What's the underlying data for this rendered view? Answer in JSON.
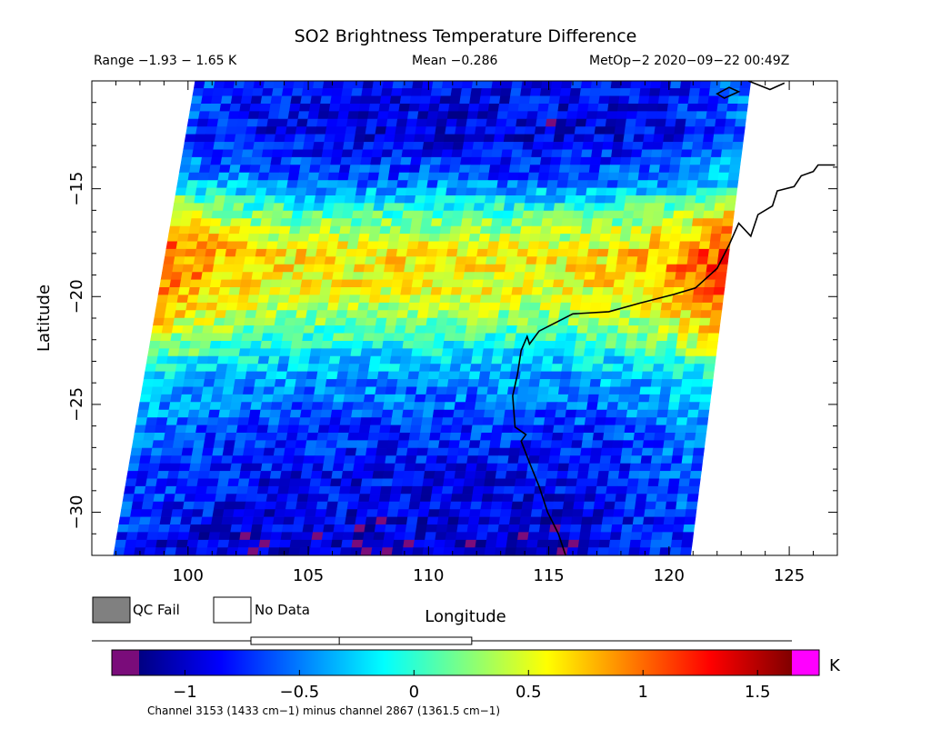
{
  "header": {
    "title": "SO2 Brightness Temperature Difference",
    "range_text": "Range −1.93 − 1.65 K",
    "mean_text": "Mean −0.286",
    "satellite_text": "MetOp−2 2020−09−22 00:49Z"
  },
  "chart_data": {
    "type": "heatmap",
    "title": "SO2 Brightness Temperature Difference",
    "xlabel": "Longitude",
    "ylabel": "Latitude",
    "xlim": [
      96,
      127
    ],
    "ylim": [
      -32,
      -10
    ],
    "x_ticks": [
      100,
      105,
      110,
      115,
      120,
      125
    ],
    "x_tick_labels": [
      "100",
      "105",
      "110",
      "115",
      "120",
      "125"
    ],
    "y_ticks": [
      -15,
      -20,
      -25,
      -30
    ],
    "y_tick_labels": [
      "−15",
      "−20",
      "−25",
      "−30"
    ],
    "value_range": [
      -1.93,
      1.65
    ],
    "mean": -0.286,
    "units": "K",
    "swath_corners_lonlat": {
      "top_left": [
        100.3,
        -10
      ],
      "top_right": [
        123.4,
        -10
      ],
      "bottom_right": [
        120.9,
        -32
      ],
      "bottom_left": [
        96.9,
        -32
      ]
    },
    "field_profile": [
      {
        "lat": -10,
        "value": -0.85
      },
      {
        "lat": -12.5,
        "value": -0.95
      },
      {
        "lat": -14.5,
        "value": -0.6
      },
      {
        "lat": -16.5,
        "value": 0.2
      },
      {
        "lat": -18,
        "value": 0.6
      },
      {
        "lat": -19.5,
        "value": 0.55
      },
      {
        "lat": -21,
        "value": 0.25
      },
      {
        "lat": -22.5,
        "value": -0.15
      },
      {
        "lat": -24,
        "value": -0.45
      },
      {
        "lat": -26,
        "value": -0.7
      },
      {
        "lat": -28,
        "value": -0.85
      },
      {
        "lat": -30,
        "value": -0.9
      },
      {
        "lat": -32,
        "value": -1.05
      }
    ],
    "edge_enhancement": {
      "west": 0.45,
      "east": 0.6
    },
    "coastline_lonlat": [
      [
        115.7,
        -32
      ],
      [
        115.4,
        -31
      ],
      [
        114.95,
        -30
      ],
      [
        114.6,
        -28.8
      ],
      [
        114.2,
        -27.7
      ],
      [
        113.85,
        -26.7
      ],
      [
        114.05,
        -26.4
      ],
      [
        113.6,
        -26.05
      ],
      [
        113.5,
        -24.6
      ],
      [
        113.7,
        -23.6
      ],
      [
        113.85,
        -22.5
      ],
      [
        114.1,
        -21.85
      ],
      [
        114.2,
        -22.2
      ],
      [
        114.6,
        -21.6
      ],
      [
        116.0,
        -20.8
      ],
      [
        117.5,
        -20.7
      ],
      [
        118.8,
        -20.3
      ],
      [
        120.2,
        -19.9
      ],
      [
        121.1,
        -19.6
      ],
      [
        122.0,
        -18.7
      ],
      [
        122.5,
        -17.6
      ],
      [
        122.9,
        -16.6
      ],
      [
        123.4,
        -17.2
      ],
      [
        123.7,
        -16.2
      ],
      [
        124.3,
        -15.8
      ],
      [
        124.5,
        -15.1
      ],
      [
        125.2,
        -14.9
      ],
      [
        125.5,
        -14.4
      ],
      [
        126.0,
        -14.2
      ],
      [
        126.2,
        -13.9
      ],
      [
        126.9,
        -13.9
      ]
    ],
    "coastline_north_lonlat": [
      [
        123.3,
        -10.0
      ],
      [
        124.2,
        -10.4
      ],
      [
        124.8,
        -10.1
      ]
    ],
    "island_lonlat": [
      [
        122.0,
        -10.6
      ],
      [
        122.5,
        -10.3
      ],
      [
        122.9,
        -10.5
      ],
      [
        122.3,
        -10.8
      ],
      [
        122.0,
        -10.6
      ]
    ]
  },
  "legend": {
    "qc_fail_label": "QC Fail",
    "qc_fail_color": "#808080",
    "no_data_label": "No Data",
    "no_data_color": "#ffffff"
  },
  "colorbar": {
    "tick_values": [
      -1,
      -0.5,
      0,
      0.5,
      1,
      1.5
    ],
    "tick_labels": [
      "−1",
      "−0.5",
      "0",
      "0.5",
      "1",
      "1.5"
    ],
    "vmin": -1.2,
    "vmax": 1.65,
    "units_label": "K",
    "under_color": "#7a0c7a",
    "over_color": "#ff00ff",
    "colors": [
      "#000082",
      "#0000ff",
      "#0080ff",
      "#00ffff",
      "#80ff80",
      "#ffff00",
      "#ff8000",
      "#ff0000",
      "#800000"
    ],
    "box_plot": {
      "whisker_low": -1.4,
      "q1": -0.8,
      "median": -0.4,
      "q3": 0.2,
      "whisker_high": 1.65
    },
    "caption": "Channel 3153 (1433 cm−1) minus channel 2867 (1361.5 cm−1)"
  }
}
